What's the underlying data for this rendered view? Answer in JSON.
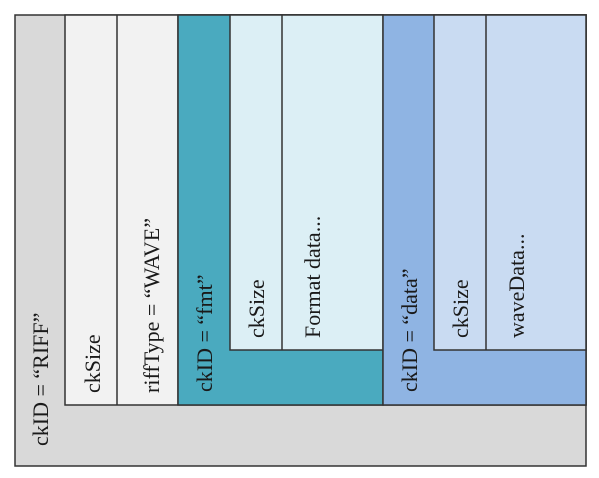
{
  "colors": {
    "riff_outer": "#d9d9d9",
    "riff_inner": "#f2f2f2",
    "fmt_outer": "#4aaabf",
    "fmt_inner": "#dceff5",
    "data_outer": "#8fb4e3",
    "data_inner": "#c9dbf2",
    "border": "#333333"
  },
  "riff": {
    "ckid": "ckID = “RIFF”",
    "cksize": "ckSize",
    "rifftype": "riffType = “WAVE”"
  },
  "fmt": {
    "ckid": "ckID = “fmt”",
    "cksize": "ckSize",
    "format": "Format data..."
  },
  "data": {
    "ckid": "ckID = “data”",
    "cksize": "ckSize",
    "wavedata": "waveData..."
  }
}
